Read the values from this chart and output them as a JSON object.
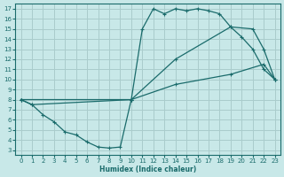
{
  "xlabel": "Humidex (Indice chaleur)",
  "bg_color": "#c8e8e8",
  "grid_color": "#aacccc",
  "line_color": "#1a6b6b",
  "xlim": [
    -0.5,
    23.5
  ],
  "ylim": [
    2.5,
    17.5
  ],
  "xticks": [
    0,
    1,
    2,
    3,
    4,
    5,
    6,
    7,
    8,
    9,
    10,
    11,
    12,
    13,
    14,
    15,
    16,
    17,
    18,
    19,
    20,
    21,
    22,
    23
  ],
  "yticks": [
    3,
    4,
    5,
    6,
    7,
    8,
    9,
    10,
    11,
    12,
    13,
    14,
    15,
    16,
    17
  ],
  "line1_x": [
    0,
    1,
    2,
    3,
    4,
    5,
    6,
    7,
    8,
    9,
    10,
    11,
    12,
    13,
    14,
    15,
    16,
    17,
    18,
    19,
    20,
    21,
    22,
    23
  ],
  "line1_y": [
    8.0,
    7.5,
    6.5,
    5.8,
    4.8,
    4.5,
    3.8,
    3.3,
    3.2,
    3.3,
    8.0,
    15.0,
    17.0,
    16.5,
    17.0,
    16.8,
    17.0,
    16.8,
    16.5,
    15.2,
    14.2,
    13.0,
    11.0,
    10.0
  ],
  "line2_x": [
    0,
    10,
    14,
    19,
    21,
    22,
    23
  ],
  "line2_y": [
    8.0,
    8.0,
    12.0,
    15.2,
    15.0,
    13.0,
    10.0
  ],
  "line3_x": [
    0,
    1,
    10,
    14,
    19,
    22,
    23
  ],
  "line3_y": [
    8.0,
    7.5,
    8.0,
    9.5,
    10.5,
    11.5,
    10.0
  ]
}
